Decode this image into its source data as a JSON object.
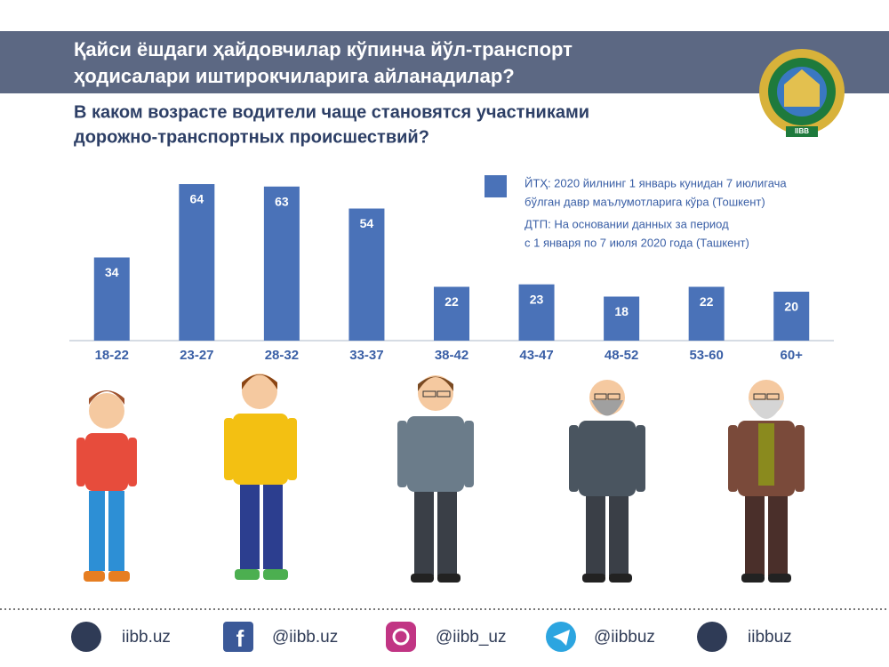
{
  "chart_data": {
    "type": "bar",
    "title": [
      "Қайси ёшдаги ҳайдовчилар кўпинча йўл-транспорт",
      "ҳодисалари иштирокчиларига айланадилар?"
    ],
    "subtitle": [
      "В каком возрасте водители чаще становятся участниками",
      "дорожно-транспортных происшествий?"
    ],
    "categories": [
      "18-22",
      "23-27",
      "28-32",
      "33-37",
      "38-42",
      "43-47",
      "48-52",
      "53-60",
      "60+"
    ],
    "values": [
      34,
      64,
      63,
      54,
      22,
      23,
      18,
      22,
      20
    ],
    "color": "#4a72b8",
    "legend": [
      "ЙТҲ: 2020 йилнинг 1 январь кунидан 7 июлигача",
      "бўлган давр маълумотларига кўра (Тошкент)",
      "ДТП: На основании данных за период",
      "с 1 января по 7 июля 2020 года (Ташкент)"
    ]
  },
  "logo_label": "IIBB",
  "footer": [
    "iibb.uz",
    "@iibb.uz",
    "@iibb_uz",
    "@iibbuz",
    "iibbuz"
  ]
}
